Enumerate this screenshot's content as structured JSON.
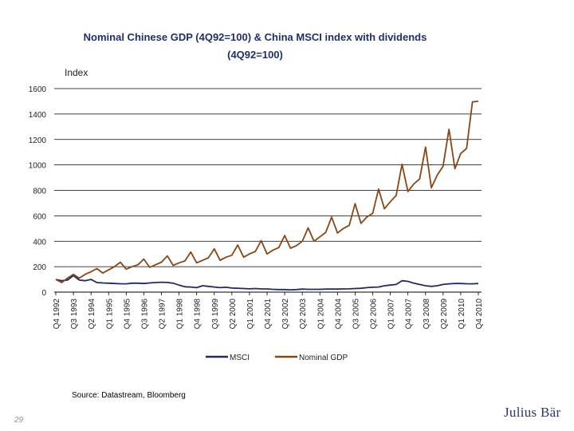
{
  "page": {
    "title_line1": "Nominal Chinese GDP (4Q92=100) & China MSCI index with dividends",
    "title_line2": "(4Q92=100)",
    "source": "Source: Datastream, Bloomberg",
    "page_number": "29",
    "logo_text": "Julius Bär"
  },
  "colors": {
    "msci": "#1f2a6b",
    "gdp": "#8b4513",
    "grid": "#000000",
    "title": "#1f2f6e"
  },
  "chart_data": {
    "type": "line",
    "ylabel": "Index",
    "ylim": [
      0,
      1600
    ],
    "yticks": [
      0,
      200,
      400,
      600,
      800,
      1000,
      1200,
      1400,
      1600
    ],
    "grid": "horizontal",
    "legend_position": "bottom-center",
    "x_tick_labels": [
      "Q4 1992",
      "Q3 1993",
      "Q2 1994",
      "Q1 1995",
      "Q4 1995",
      "Q3 1996",
      "Q2 1997",
      "Q1 1998",
      "Q4 1998",
      "Q3 1999",
      "Q2 2000",
      "Q1 2001",
      "Q4 2001",
      "Q3 2002",
      "Q2 2003",
      "Q1 2004",
      "Q4 2004",
      "Q3 2005",
      "Q2 2006",
      "Q1 2007",
      "Q4 2007",
      "Q3 2008",
      "Q2 2009",
      "Q1 2010",
      "Q4 2010"
    ],
    "x_start": "Q4 1992",
    "x_end": "Q4 2010",
    "series": [
      {
        "name": "MSCI",
        "color": "#1f2a6b",
        "values": [
          100,
          90,
          95,
          130,
          95,
          90,
          100,
          75,
          72,
          70,
          68,
          66,
          65,
          70,
          70,
          68,
          72,
          75,
          78,
          76,
          70,
          55,
          42,
          40,
          35,
          50,
          45,
          40,
          35,
          38,
          32,
          30,
          28,
          26,
          28,
          25,
          25,
          22,
          20,
          20,
          18,
          20,
          24,
          22,
          22,
          22,
          24,
          24,
          24,
          25,
          26,
          28,
          30,
          35,
          38,
          40,
          50,
          55,
          60,
          90,
          85,
          70,
          60,
          50,
          45,
          50,
          60,
          65,
          68,
          68,
          66,
          65,
          68
        ]
      },
      {
        "name": "Nominal GDP",
        "color": "#8b4513",
        "values": [
          100,
          75,
          110,
          140,
          110,
          140,
          160,
          185,
          150,
          175,
          200,
          235,
          180,
          200,
          215,
          260,
          195,
          215,
          235,
          285,
          210,
          230,
          245,
          315,
          230,
          250,
          270,
          340,
          250,
          275,
          290,
          370,
          275,
          300,
          320,
          405,
          300,
          330,
          350,
          445,
          345,
          365,
          400,
          505,
          400,
          435,
          470,
          590,
          465,
          500,
          525,
          695,
          540,
          590,
          620,
          810,
          655,
          710,
          760,
          1005,
          790,
          850,
          890,
          1140,
          820,
          920,
          990,
          1280,
          970,
          1090,
          1130,
          1495,
          1500
        ]
      }
    ]
  }
}
